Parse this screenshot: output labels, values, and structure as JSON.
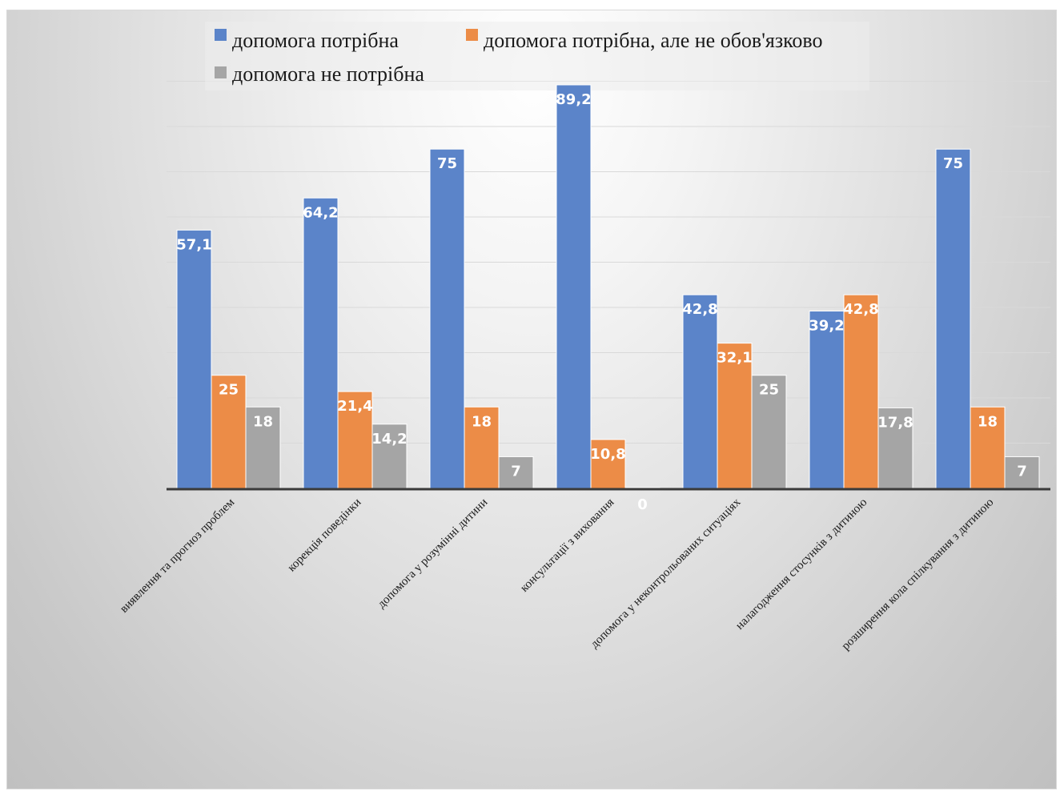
{
  "chart_data": {
    "type": "bar",
    "categories": [
      "виявлення та прогноз проблем",
      "корекція поведінки",
      "допомога у розумінні дитини",
      "консультації з виховання",
      "допомога у неконтрольованих ситуаціях",
      "налагодження стосунків з дитиною",
      "розширення кола спілкування з дитиною"
    ],
    "series": [
      {
        "name": "допомога потрібна",
        "color": "#5b84c9",
        "values": [
          57.1,
          64.2,
          75,
          89.2,
          42.8,
          39.2,
          75
        ],
        "labels": [
          "57,1",
          "64,2",
          "75",
          "89,2",
          "42,8",
          "39,2",
          "75"
        ]
      },
      {
        "name": "допомога потрібна, але не обов'язково",
        "color": "#ec8c47",
        "values": [
          25,
          21.4,
          18,
          10.8,
          32.1,
          42.8,
          18
        ],
        "labels": [
          "25",
          "21,4",
          "18",
          "10,8",
          "32,1",
          "42,8",
          "18"
        ]
      },
      {
        "name": "допомога не потрібна",
        "color": "#a5a5a5",
        "values": [
          18,
          14.2,
          7,
          0,
          25,
          17.8,
          7
        ],
        "labels": [
          "18",
          "14,2",
          "7",
          "0",
          "25",
          "17,8",
          "7"
        ]
      }
    ],
    "title": "",
    "xlabel": "",
    "ylabel": "",
    "ylim": [
      0,
      90
    ],
    "grid": true,
    "legend_position": "top"
  }
}
